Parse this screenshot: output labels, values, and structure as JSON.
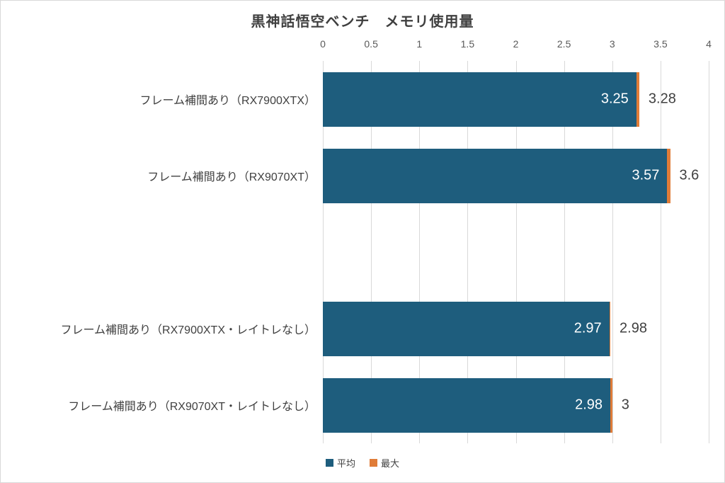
{
  "chart_data": {
    "type": "bar",
    "orientation": "horizontal",
    "title": "黒神話悟空ベンチ　メモリ使用量",
    "categories": [
      "フレーム補間あり（RX7900XTX）",
      "フレーム補間あり（RX9070XT）",
      "フレーム補間あり（RX7900XTX・レイトレなし）",
      "フレーム補間あり（RX9070XT・レイトレなし）"
    ],
    "series": [
      {
        "name": "平均",
        "color": "#1e5d7d",
        "values": [
          3.25,
          3.57,
          2.97,
          2.98
        ],
        "labels": [
          "3.25",
          "3.57",
          "2.97",
          "2.98"
        ],
        "label_position": "inside-end",
        "label_color": "#ffffff"
      },
      {
        "name": "最大",
        "color": "#e07c38",
        "values": [
          3.28,
          3.6,
          2.98,
          3
        ],
        "labels": [
          "3.28",
          "3.6",
          "2.98",
          "3"
        ],
        "label_position": "outside-end",
        "label_color": "#404040"
      }
    ],
    "xlim": [
      0,
      4
    ],
    "x_ticks": [
      0,
      0.5,
      1,
      1.5,
      2,
      2.5,
      3,
      3.5,
      4
    ],
    "grid": true,
    "gridline_color": "#d9d9d9",
    "axis_label_color": "#595959",
    "category_label_color": "#404040",
    "legend_position": "bottom",
    "layout_hints": {
      "total_category_slots": 5,
      "bar_slot_indexes": [
        0,
        1,
        3,
        4
      ],
      "note_blank_slot": "empty category row between 2nd and 3rd bars",
      "series_overlap": "100% (max drawn behind 平均, visible as sliver at bar end)"
    }
  }
}
